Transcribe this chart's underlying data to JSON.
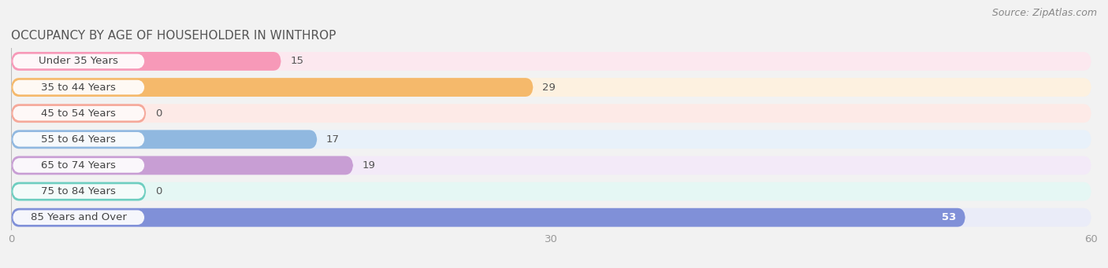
{
  "title": "OCCUPANCY BY AGE OF HOUSEHOLDER IN WINTHROP",
  "source": "Source: ZipAtlas.com",
  "categories": [
    "Under 35 Years",
    "35 to 44 Years",
    "45 to 54 Years",
    "55 to 64 Years",
    "65 to 74 Years",
    "75 to 84 Years",
    "85 Years and Over"
  ],
  "values": [
    15,
    29,
    0,
    17,
    19,
    0,
    53
  ],
  "bar_colors": [
    "#f799b8",
    "#f5b96b",
    "#f5a89a",
    "#90b8e0",
    "#c89ed4",
    "#6ecec0",
    "#8090d8"
  ],
  "bg_colors": [
    "#fce8ef",
    "#fdf1e0",
    "#fdeae7",
    "#e8f1fa",
    "#f3eaf8",
    "#e5f7f4",
    "#eaecf8"
  ],
  "label_bg_color": "#ffffff",
  "xlim": [
    0,
    60
  ],
  "xticks": [
    0,
    30,
    60
  ],
  "title_fontsize": 11,
  "bar_height": 0.72,
  "label_fontsize": 9.5,
  "value_fontsize": 9.5,
  "source_fontsize": 9,
  "fig_bg": "#f2f2f2"
}
